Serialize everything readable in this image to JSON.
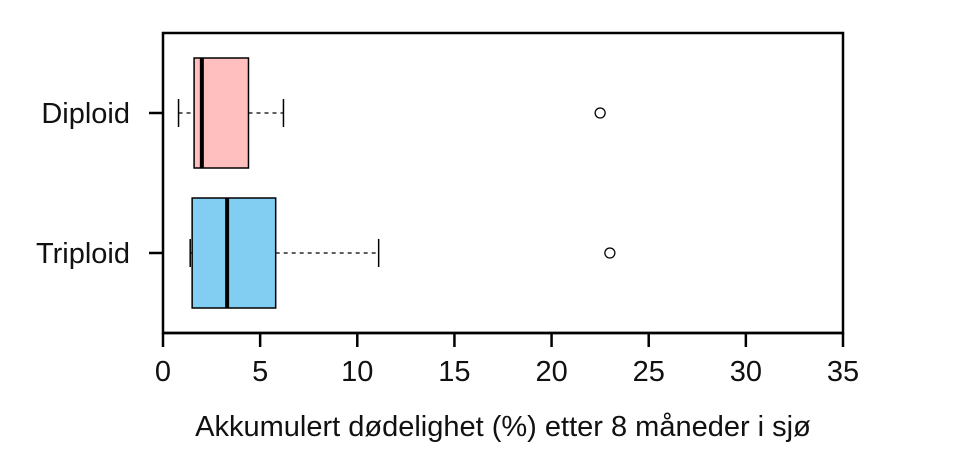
{
  "chart_data": {
    "type": "boxplot",
    "orientation": "horizontal",
    "xlabel": "Akkumulert dødelighet (%) etter 8 måneder i sjø",
    "ylabel": "",
    "xlim": [
      0,
      35
    ],
    "xticks": [
      "0",
      "5",
      "10",
      "15",
      "20",
      "25",
      "30",
      "35"
    ],
    "grid": false,
    "series": [
      {
        "name": "Diploid",
        "color": "#ffbfbf",
        "whisker_low": 0.8,
        "q1": 1.6,
        "median": 2.0,
        "q3": 4.4,
        "whisker_high": 6.2,
        "outliers": [
          22.5
        ]
      },
      {
        "name": "Triploid",
        "color": "#82cdf2",
        "whisker_low": 1.4,
        "q1": 1.5,
        "median": 3.3,
        "q3": 5.8,
        "whisker_high": 11.1,
        "outliers": [
          23.0
        ]
      }
    ]
  }
}
